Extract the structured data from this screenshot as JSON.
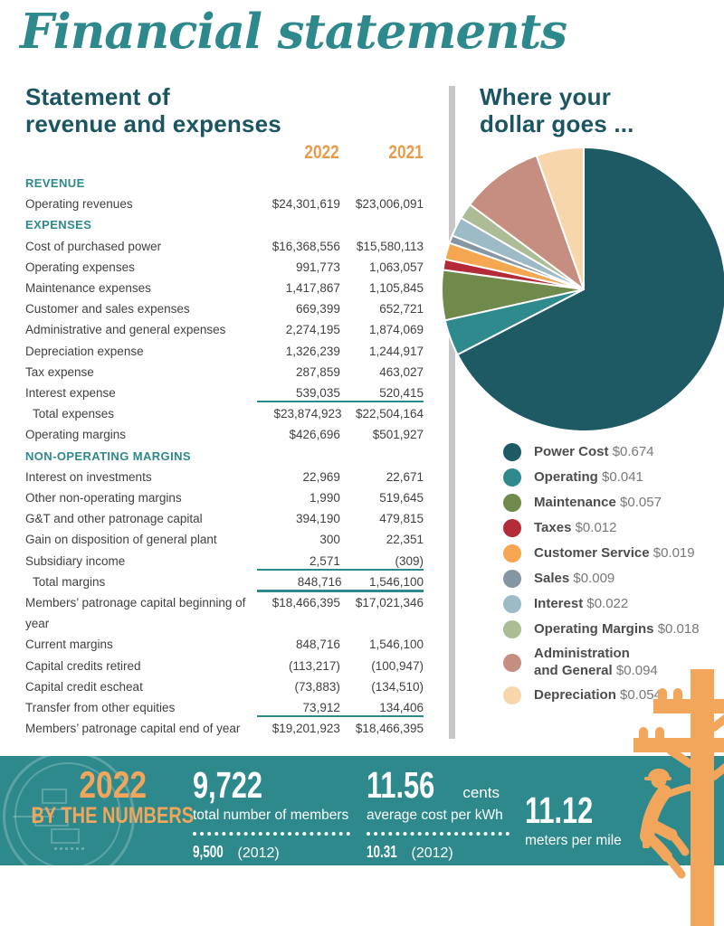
{
  "page": {
    "title": "Financial statements"
  },
  "colors": {
    "brand_teal": "#2D898C",
    "dark_teal": "#1A5561",
    "orange": "#F1A65B",
    "orange_text": "#E89C4B",
    "text_dark": "#414042",
    "text_gray": "#77787B",
    "divider_gray": "#C7C7C9"
  },
  "statement": {
    "heading": "Statement of\nrevenue and expenses",
    "columns": [
      "2022",
      "2021"
    ],
    "rows": [
      {
        "type": "section",
        "label": "REVENUE"
      },
      {
        "label": "Operating revenues",
        "y2022": "$24,301,619",
        "y2021": "$23,006,091"
      },
      {
        "type": "section",
        "label": "EXPENSES"
      },
      {
        "label": "Cost of purchased power",
        "y2022": "$16,368,556",
        "y2021": "$15,580,113"
      },
      {
        "label": "Operating expenses",
        "y2022": "991,773",
        "y2021": "1,063,057"
      },
      {
        "label": "Maintenance expenses",
        "y2022": "1,417,867",
        "y2021": "1,105,845"
      },
      {
        "label": "Customer and sales expenses",
        "y2022": "669,399",
        "y2021": "652,721"
      },
      {
        "label": "Administrative and general expenses",
        "y2022": "2,274,195",
        "y2021": "1,874,069"
      },
      {
        "label": "Depreciation expense",
        "y2022": "1,326,239",
        "y2021": "1,244,917"
      },
      {
        "label": "Tax expense",
        "y2022": "287,859",
        "y2021": "463,027"
      },
      {
        "label": "Interest expense",
        "y2022": "539,035",
        "y2021": "520,415",
        "rule_below": true
      },
      {
        "label": "Total expenses",
        "y2022": "$23,874,923",
        "y2021": "$22,504,164",
        "indent": true
      },
      {
        "label": "Operating margins",
        "y2022": "$426,696",
        "y2021": "$501,927"
      },
      {
        "type": "section",
        "label": "NON-OPERATING MARGINS"
      },
      {
        "label": "Interest on investments",
        "y2022": "22,969",
        "y2021": "22,671"
      },
      {
        "label": "Other non-operating margins",
        "y2022": "1,990",
        "y2021": "519,645"
      },
      {
        "label": "G&T and other patronage capital",
        "y2022": "394,190",
        "y2021": "479,815"
      },
      {
        "label": "Gain on disposition of general plant",
        "y2022": "300",
        "y2021": "22,351"
      },
      {
        "label": "Subsidiary income",
        "y2022": "2,571",
        "y2021": "(309)",
        "rule_below": true
      },
      {
        "label": "Total margins",
        "y2022": "848,716",
        "y2021": "1,546,100",
        "indent": true,
        "rule_thick": true
      },
      {
        "label": "Members’ patronage capital beginning of year",
        "y2022": "$18,466,395",
        "y2021": "$17,021,346"
      },
      {
        "label": "Current margins",
        "y2022": "848,716",
        "y2021": "1,546,100"
      },
      {
        "label": "Capital credits retired",
        "y2022": "(113,217)",
        "y2021": "(100,947)"
      },
      {
        "label": "Capital credit escheat",
        "y2022": "(73,883)",
        "y2021": "(134,510)"
      },
      {
        "label": "Transfer from other equities",
        "y2022": "73,912",
        "y2021": "134,406",
        "rule_below": true
      },
      {
        "label": "Members’ patronage capital end of year",
        "y2022": "$19,201,923",
        "y2021": "$18,466,395"
      }
    ]
  },
  "chart_data": {
    "type": "pie",
    "title": "Where your\ndollar goes ...",
    "start_angle": "12-oclock",
    "direction": "clockwise",
    "legend_position": "below-right",
    "slices": [
      {
        "label": "Power Cost",
        "value": 0.674,
        "display": "$0.674",
        "color": "#1D5A64"
      },
      {
        "label": "Operating",
        "value": 0.041,
        "display": "$0.041",
        "color": "#2E8A8C"
      },
      {
        "label": "Maintenance",
        "value": 0.057,
        "display": "$0.057",
        "color": "#6F8A4A"
      },
      {
        "label": "Taxes",
        "value": 0.012,
        "display": "$0.012",
        "color": "#B32B38"
      },
      {
        "label": "Customer Service",
        "value": 0.019,
        "display": "$0.019",
        "color": "#F5A650"
      },
      {
        "label": "Sales",
        "value": 0.009,
        "display": "$0.009",
        "color": "#8496A3"
      },
      {
        "label": "Interest",
        "value": 0.022,
        "display": "$0.022",
        "color": "#9DBAC7"
      },
      {
        "label": "Operating Margins",
        "value": 0.018,
        "display": "$0.018",
        "color": "#ACBD96"
      },
      {
        "label": "Administration\nand General",
        "value": 0.094,
        "display": "$0.094",
        "color": "#C68D81"
      },
      {
        "label": "Depreciation",
        "value": 0.054,
        "display": "$0.054",
        "color": "#F8D6AB"
      }
    ]
  },
  "banner": {
    "year": "2022",
    "label": "BY THE NUMBERS",
    "stats": [
      {
        "value": "9,722",
        "unit": "",
        "caption": "total number of members",
        "prior_value": "9,500",
        "prior_year": "(2012)"
      },
      {
        "value": "11.56",
        "unit": "cents",
        "caption": "average cost per kWh",
        "prior_value": "10.31",
        "prior_year": "(2012)"
      },
      {
        "value": "11.12",
        "unit": "",
        "caption": "meters per mile"
      }
    ]
  }
}
